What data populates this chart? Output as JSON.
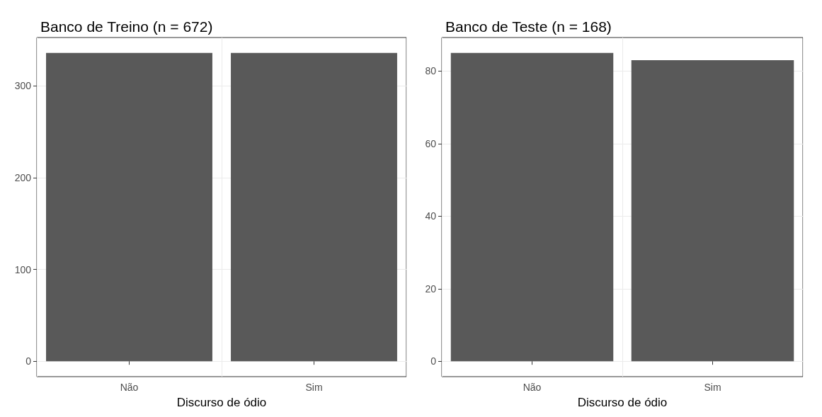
{
  "chart_data": [
    {
      "type": "bar",
      "title": "Banco de Treino (n = 672)",
      "xlabel": "Discurso de ódio",
      "categories": [
        "Não",
        "Sim"
      ],
      "values": [
        336,
        336
      ],
      "color": "#595959",
      "ylim": [
        -16.8,
        352.8
      ],
      "yticks": [
        0,
        100,
        200,
        300
      ],
      "grid": true
    },
    {
      "type": "bar",
      "title": "Banco de Teste (n = 168)",
      "xlabel": "Discurso de ódio",
      "categories": [
        "Não",
        "Sim"
      ],
      "values": [
        85,
        83
      ],
      "color": "#595959",
      "ylim": [
        -4.25,
        89.25
      ],
      "yticks": [
        0,
        20,
        40,
        60,
        80
      ],
      "grid": true
    }
  ]
}
